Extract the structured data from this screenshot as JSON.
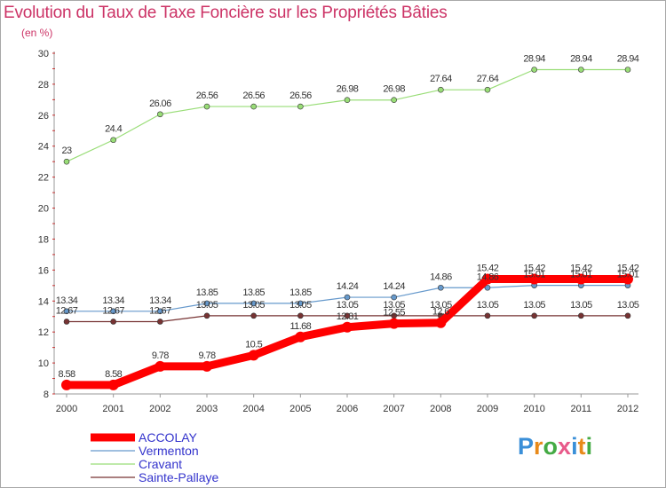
{
  "header": {
    "title": "Evolution du Taux de Taxe Foncière sur les Propriétés Bâties",
    "subtitle": "(en %)"
  },
  "logo": {
    "text": "Proxiti",
    "colors": [
      "#3a8fd8",
      "#e88a1a",
      "#44aa44",
      "#e85a8a",
      "#3a8fd8",
      "#e88a1a",
      "#44aa44"
    ]
  },
  "chart_data": {
    "type": "line",
    "x": [
      "2000",
      "2001",
      "2002",
      "2003",
      "2004",
      "2005",
      "2006",
      "2007",
      "2008",
      "2009",
      "2010",
      "2011",
      "2012"
    ],
    "ylim": [
      8,
      30
    ],
    "yticks": [
      8,
      10,
      12,
      14,
      16,
      18,
      20,
      22,
      24,
      26,
      28,
      30
    ],
    "grid": false,
    "legend_position": "bottom-left",
    "series": [
      {
        "name": "ACCOLAY",
        "color": "#ff0000",
        "width": 9,
        "marker_r": 6,
        "values": [
          8.58,
          8.58,
          9.78,
          9.78,
          10.5,
          11.68,
          12.31,
          12.55,
          12.6,
          15.42,
          15.42,
          15.42,
          15.42
        ],
        "labels": [
          "8.58",
          "8.58",
          "9.78",
          "9.78",
          "10.5",
          "11.68",
          "12.31",
          "12.55",
          "12.6",
          "15.42",
          "15.42",
          "15.42",
          "15.42"
        ]
      },
      {
        "name": "Vermenton",
        "color": "#6699cc",
        "width": 1.2,
        "marker_r": 3,
        "values": [
          13.34,
          13.34,
          13.34,
          13.85,
          13.85,
          13.85,
          14.24,
          14.24,
          14.86,
          14.86,
          15.01,
          15.01,
          15.01
        ],
        "labels": [
          "13.34",
          "13.34",
          "13.34",
          "13.85",
          "13.85",
          "13.85",
          "14.24",
          "14.24",
          "14.86",
          "14.86",
          "15.01",
          "15.01",
          "15.01"
        ]
      },
      {
        "name": "Cravant",
        "color": "#99dd77",
        "width": 1.2,
        "marker_r": 3,
        "values": [
          23,
          24.4,
          26.06,
          26.56,
          26.56,
          26.56,
          26.98,
          26.98,
          27.64,
          27.64,
          28.94,
          28.94,
          28.94
        ],
        "labels": [
          "23",
          "24.4",
          "26.06",
          "26.56",
          "26.56",
          "26.56",
          "26.98",
          "26.98",
          "27.64",
          "27.64",
          "28.94",
          "28.94",
          "28.94"
        ]
      },
      {
        "name": "Sainte-Pallaye",
        "color": "#773333",
        "width": 1.2,
        "marker_r": 3,
        "values": [
          12.67,
          12.67,
          12.67,
          13.05,
          13.05,
          13.05,
          13.05,
          13.05,
          13.05,
          13.05,
          13.05,
          13.05,
          13.05
        ],
        "labels": [
          "12.67",
          "12.67",
          "12.67",
          "13.05",
          "13.05",
          "13.05",
          "13.05",
          "13.05",
          "13.05",
          "13.05",
          "13.05",
          "13.05",
          "13.05"
        ]
      }
    ]
  }
}
